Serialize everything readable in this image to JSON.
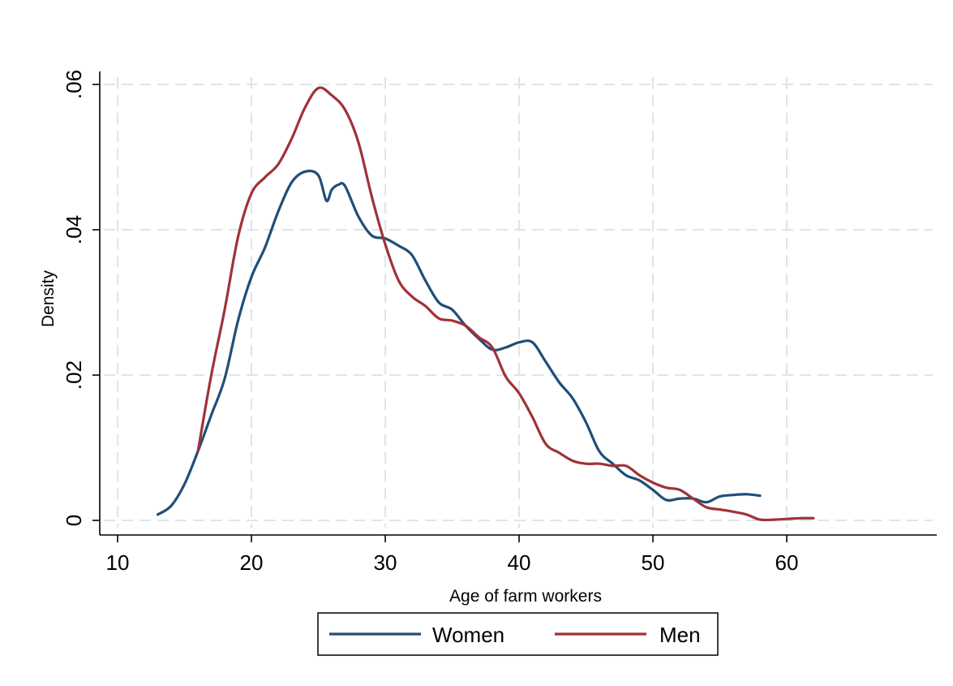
{
  "chart_data": {
    "type": "line",
    "title": "",
    "xlabel": "Age of farm workers",
    "ylabel": "Density",
    "xlim": [
      10,
      70
    ],
    "ylim": [
      0,
      0.06
    ],
    "x_ticks": [
      10,
      20,
      30,
      40,
      50,
      60
    ],
    "x_tick_labels": [
      "10",
      "20",
      "30",
      "40",
      "50",
      "60"
    ],
    "y_ticks": [
      0,
      0.02,
      0.04,
      0.06
    ],
    "y_tick_labels": [
      "0",
      ".02",
      ".04",
      ".06"
    ],
    "grid": true,
    "legend_position": "bottom",
    "series": [
      {
        "name": "Women",
        "color": "#1f4e79",
        "x": [
          13,
          14,
          15,
          16,
          17,
          18,
          19,
          20,
          21,
          22,
          23,
          24,
          25,
          25.6,
          26,
          26.5,
          27,
          28,
          29,
          30,
          31,
          32,
          33,
          34,
          35,
          36,
          37,
          38,
          39,
          40,
          41,
          42,
          43,
          44,
          45,
          46,
          47,
          48,
          49,
          50,
          51,
          52,
          53,
          54,
          55,
          56,
          57,
          58
        ],
        "y": [
          0.0008,
          0.002,
          0.005,
          0.0095,
          0.0145,
          0.0195,
          0.0275,
          0.0335,
          0.0375,
          0.0425,
          0.0465,
          0.048,
          0.0475,
          0.044,
          0.0455,
          0.0462,
          0.046,
          0.0418,
          0.0392,
          0.0388,
          0.0378,
          0.0365,
          0.033,
          0.03,
          0.029,
          0.0268,
          0.025,
          0.0235,
          0.0238,
          0.0245,
          0.0245,
          0.0218,
          0.019,
          0.0168,
          0.0135,
          0.0095,
          0.0078,
          0.0062,
          0.0055,
          0.0042,
          0.0028,
          0.003,
          0.003,
          0.0025,
          0.0033,
          0.0035,
          0.0036,
          0.0034
        ]
      },
      {
        "name": "Men",
        "color": "#a03238",
        "x": [
          16,
          17,
          18,
          19,
          20,
          21,
          22,
          23,
          24,
          25,
          26,
          27,
          28,
          29,
          30,
          31,
          32,
          33,
          34,
          35,
          36,
          37,
          38,
          39,
          40,
          41,
          42,
          43,
          44,
          45,
          46,
          47,
          48,
          49,
          50,
          51,
          52,
          53,
          54,
          55,
          56,
          57,
          58,
          59,
          60,
          61,
          62
        ],
        "y": [
          0.0095,
          0.02,
          0.029,
          0.039,
          0.045,
          0.0472,
          0.049,
          0.0525,
          0.0568,
          0.0595,
          0.0585,
          0.0565,
          0.052,
          0.0445,
          0.038,
          0.033,
          0.0308,
          0.0295,
          0.0278,
          0.0275,
          0.0268,
          0.0252,
          0.0238,
          0.0198,
          0.0175,
          0.0142,
          0.0105,
          0.0093,
          0.0082,
          0.0078,
          0.0078,
          0.0075,
          0.0075,
          0.0062,
          0.0052,
          0.0045,
          0.0042,
          0.003,
          0.0018,
          0.0015,
          0.0012,
          0.0008,
          0.0001,
          0.0001,
          0.0002,
          0.0003,
          0.0003
        ]
      }
    ]
  }
}
